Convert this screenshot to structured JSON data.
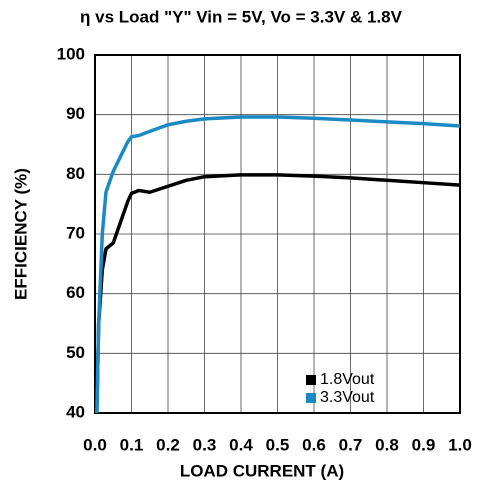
{
  "chart_data": {
    "type": "line",
    "title": "η vs Load \"Y\" Vin = 5V, Vo = 3.3V & 1.8V",
    "xlabel": "LOAD CURRENT (A)",
    "ylabel": "EFFICIENCY (%)",
    "x": [
      0.005,
      0.01,
      0.02,
      0.03,
      0.05,
      0.07,
      0.09,
      0.1,
      0.12,
      0.15,
      0.2,
      0.25,
      0.3,
      0.4,
      0.5,
      0.6,
      0.7,
      0.8,
      0.9,
      1.0
    ],
    "series": [
      {
        "name": "1.8Vout",
        "color": "#000000",
        "values": [
          40,
          55,
          64,
          67.5,
          68.5,
          72,
          75.5,
          76.8,
          77.3,
          77,
          78,
          79,
          79.6,
          79.9,
          79.9,
          79.7,
          79.4,
          79.0,
          78.6,
          78.2
        ]
      },
      {
        "name": "3.3Vout",
        "color": "#1b8ac4",
        "values": [
          40,
          55,
          70,
          77,
          80.5,
          83,
          85.5,
          86.3,
          86.5,
          87.2,
          88.3,
          88.9,
          89.3,
          89.6,
          89.6,
          89.4,
          89.1,
          88.8,
          88.5,
          88.1
        ]
      }
    ],
    "xlim": [
      0,
      1
    ],
    "xticks": [
      {
        "value": 0,
        "label": "0.0"
      },
      0.1,
      0.2,
      0.3,
      0.4,
      0.5,
      0.6,
      0.7,
      0.8,
      0.9,
      {
        "value": 1,
        "label": "1.0"
      }
    ],
    "ylim": [
      40,
      100
    ],
    "yticks": [
      40,
      50,
      60,
      70,
      80,
      90,
      100
    ],
    "grid": true,
    "legend": "lower right"
  }
}
